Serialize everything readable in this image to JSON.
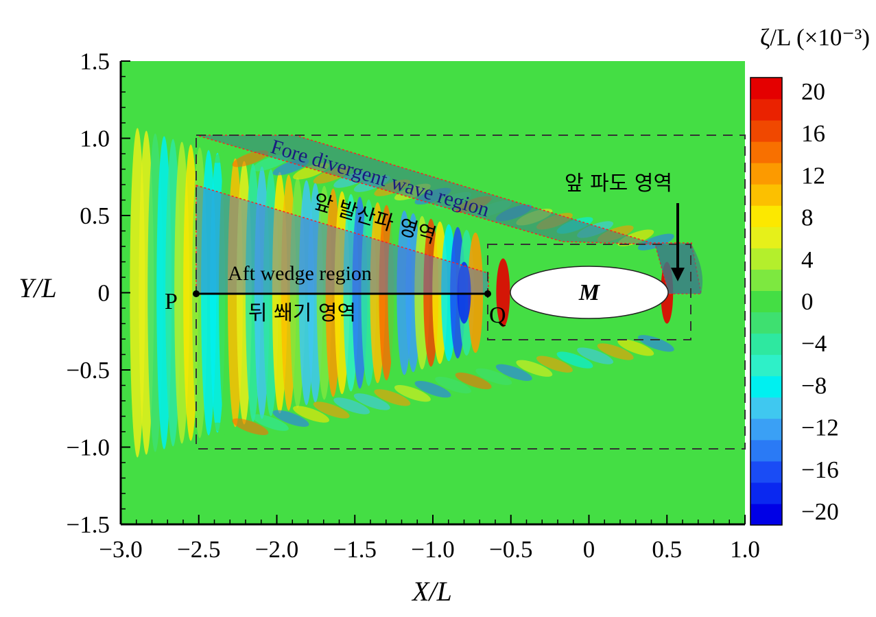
{
  "chart_data": {
    "type": "heatmap",
    "title": "",
    "xlabel": "X/L",
    "ylabel": "Y/L",
    "xlim": [
      -3.0,
      1.0
    ],
    "ylim": [
      -1.5,
      1.5
    ],
    "x_ticks": [
      "−3.0",
      "−2.5",
      "−2.0",
      "−1.5",
      "−1.0",
      "−0.5",
      "0",
      "0.5",
      "1.0"
    ],
    "y_ticks": [
      "−1.5",
      "−1.0",
      "−0.5",
      "0",
      "0.5",
      "1.0",
      "1.5"
    ],
    "colorbar": {
      "label": "ζ/L (×10⁻³)",
      "min": -20,
      "max": 20,
      "ticks": [
        "20",
        "16",
        "12",
        "8",
        "4",
        "0",
        "−4",
        "−8",
        "−12",
        "−16",
        "−20"
      ],
      "colors": [
        "#0000e6",
        "#0a28f0",
        "#1a4cf5",
        "#2a7af5",
        "#3aa0f5",
        "#3fc8f0",
        "#00f0f0",
        "#2ef0c8",
        "#2ee8a0",
        "#3ee070",
        "#44de44",
        "#7de840",
        "#b4ef2c",
        "#e6f01a",
        "#fce800",
        "#fcc000",
        "#fc9a00",
        "#f87000",
        "#f04800",
        "#ea2200",
        "#e40000"
      ]
    },
    "regions": [
      {
        "name": "Fore divergent wave region",
        "label": "앞 발산파 영역"
      },
      {
        "name": "Aft wedge region",
        "label": "뒤 쐐기 영역"
      },
      {
        "name": "앞 파도 영역"
      }
    ],
    "points": [
      {
        "name": "P",
        "x": -2.5,
        "y": 0
      },
      {
        "name": "Q",
        "x": -0.65,
        "y": 0
      }
    ],
    "body_label": "M",
    "dashed_boxes": [
      {
        "x": [
          -2.5,
          1.0
        ],
        "y": [
          -1.0,
          1.0
        ]
      },
      {
        "x": [
          -0.63,
          0.67
        ],
        "y": [
          -0.31,
          0.3
        ]
      }
    ]
  }
}
